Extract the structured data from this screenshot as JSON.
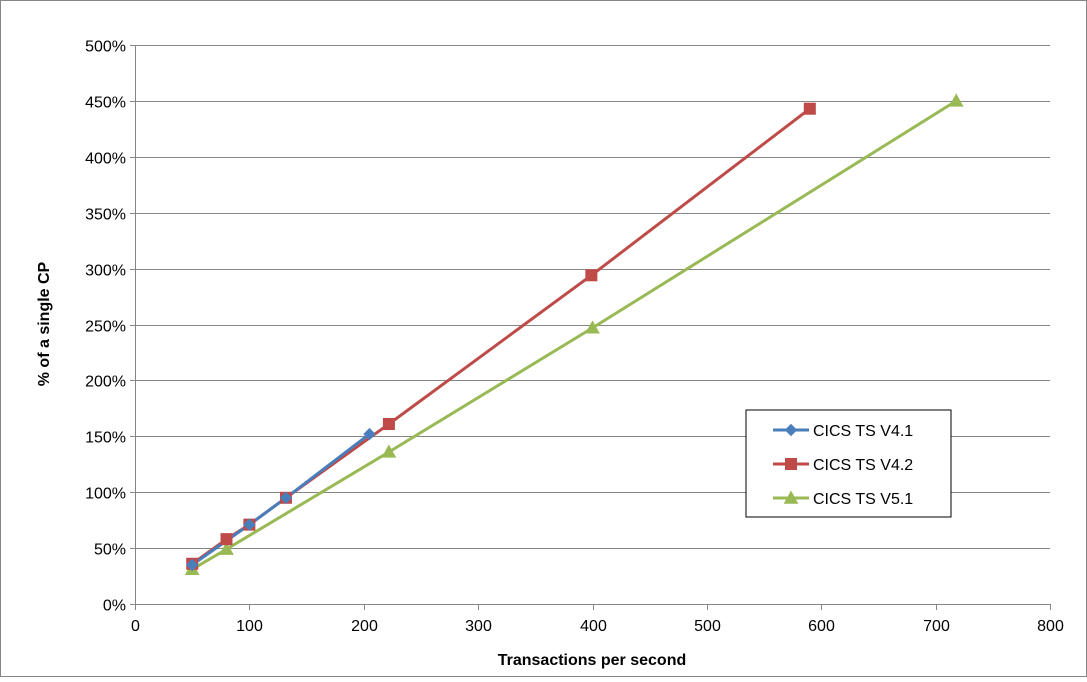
{
  "chart_data": {
    "type": "line",
    "title": "",
    "xlabel": "Transactions per second",
    "ylabel": "% of a single CP",
    "xlim": [
      0,
      800
    ],
    "ylim": [
      0,
      500
    ],
    "x_ticks": [
      0,
      100,
      200,
      300,
      400,
      500,
      600,
      700,
      800
    ],
    "y_ticks": [
      0,
      50,
      100,
      150,
      200,
      250,
      300,
      350,
      400,
      450,
      500
    ],
    "y_tick_suffix": "%",
    "grid": "horizontal",
    "legend_position": "right",
    "series": [
      {
        "name": "CICS TS V4.1",
        "color": "#4a7ebb",
        "marker": "diamond",
        "points": [
          [
            50,
            35
          ],
          [
            100,
            71
          ],
          [
            132,
            95
          ],
          [
            205,
            152
          ]
        ]
      },
      {
        "name": "CICS TS V4.2",
        "color": "#be4b48",
        "marker": "square",
        "points": [
          [
            50,
            36
          ],
          [
            80,
            58
          ],
          [
            100,
            71
          ],
          [
            132,
            95
          ],
          [
            222,
            161
          ],
          [
            399,
            294
          ],
          [
            590,
            443
          ]
        ]
      },
      {
        "name": "CICS TS V5.1",
        "color": "#98b954",
        "marker": "triangle",
        "points": [
          [
            50,
            31
          ],
          [
            80,
            49
          ],
          [
            222,
            136
          ],
          [
            400,
            247
          ],
          [
            718,
            450
          ]
        ]
      }
    ]
  }
}
